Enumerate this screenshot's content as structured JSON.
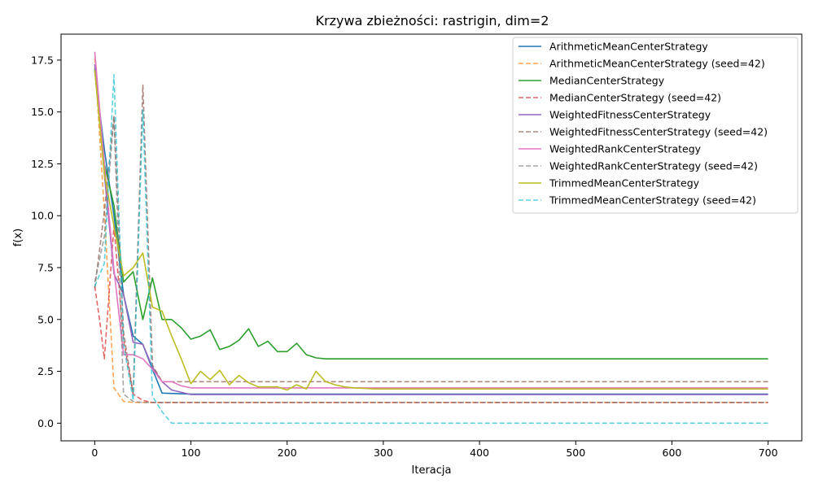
{
  "chart_data": {
    "type": "line",
    "title": "Krzywa zbieżności: rastrigin, dim=2",
    "xlabel": "Iteracja",
    "ylabel": "f(x)",
    "xlim": [
      -35,
      735
    ],
    "ylim": [
      -0.85,
      18.75
    ],
    "xticks": [
      0,
      100,
      200,
      300,
      400,
      500,
      600,
      700
    ],
    "yticks": [
      0.0,
      2.5,
      5.0,
      7.5,
      10.0,
      12.5,
      15.0,
      17.5
    ],
    "ytick_labels": [
      "0.0",
      "2.5",
      "5.0",
      "7.5",
      "10.0",
      "12.5",
      "15.0",
      "17.5"
    ],
    "grid": false,
    "legend_position": "top-right",
    "series": [
      {
        "name": "ArithmeticMeanCenterStrategy",
        "color": "#1f77b4",
        "dash": "solid",
        "x": [
          0,
          10,
          20,
          30,
          40,
          50,
          60,
          70,
          100,
          700
        ],
        "y": [
          17.0,
          13.2,
          10.0,
          6.2,
          4.2,
          3.8,
          2.6,
          1.45,
          1.4,
          1.4
        ]
      },
      {
        "name": "ArithmeticMeanCenterStrategy (seed=42)",
        "color": "#ff7f0e",
        "dash": "dashed",
        "x": [
          0,
          10,
          20,
          30,
          40,
          50,
          700
        ],
        "y": [
          17.6,
          10.2,
          1.7,
          1.05,
          1.0,
          1.0,
          1.0
        ]
      },
      {
        "name": "MedianCenterStrategy",
        "color": "#2ca02c",
        "dash": "solid",
        "x": [
          0,
          10,
          20,
          30,
          40,
          50,
          60,
          70,
          80,
          90,
          100,
          110,
          120,
          130,
          140,
          150,
          160,
          170,
          180,
          190,
          200,
          210,
          220,
          230,
          240,
          700
        ],
        "y": [
          17.1,
          12.5,
          10.5,
          6.8,
          7.3,
          5.0,
          7.0,
          5.0,
          5.0,
          4.6,
          4.05,
          4.2,
          4.5,
          3.55,
          3.7,
          4.0,
          4.55,
          3.7,
          3.95,
          3.45,
          3.45,
          3.85,
          3.3,
          3.15,
          3.1,
          3.1
        ]
      },
      {
        "name": "MedianCenterStrategy (seed=42)",
        "color": "#d62728",
        "dash": "dashed",
        "x": [
          0,
          5,
          10,
          20,
          30,
          40,
          50,
          60,
          700
        ],
        "y": [
          6.6,
          5.0,
          3.1,
          9.5,
          4.0,
          1.4,
          1.1,
          1.0,
          1.0
        ]
      },
      {
        "name": "WeightedFitnessCenterStrategy",
        "color": "#9467bd",
        "dash": "solid",
        "x": [
          0,
          10,
          20,
          30,
          40,
          50,
          60,
          70,
          80,
          100,
          700
        ],
        "y": [
          17.3,
          12.0,
          7.2,
          6.2,
          3.9,
          3.8,
          2.7,
          2.0,
          1.6,
          1.38,
          1.38
        ]
      },
      {
        "name": "WeightedFitnessCenterStrategy (seed=42)",
        "color": "#8c564b",
        "dash": "dashed",
        "x": [
          0,
          10,
          20,
          30,
          40,
          50,
          60,
          70,
          700
        ],
        "y": [
          6.5,
          10.2,
          14.8,
          4.4,
          1.4,
          16.3,
          2.8,
          2.0,
          2.0
        ]
      },
      {
        "name": "WeightedRankCenterStrategy",
        "color": "#e377c2",
        "dash": "solid",
        "x": [
          0,
          10,
          20,
          30,
          40,
          50,
          60,
          70,
          80,
          90,
          100,
          700
        ],
        "y": [
          17.9,
          12.5,
          7.4,
          3.3,
          3.3,
          3.1,
          2.6,
          2.0,
          2.0,
          1.8,
          1.7,
          1.7
        ]
      },
      {
        "name": "WeightedRankCenterStrategy (seed=42)",
        "color": "#7f7f7f",
        "dash": "dashed",
        "x": [
          0,
          10,
          20,
          30,
          40,
          50,
          700
        ],
        "y": [
          6.8,
          9.0,
          14.8,
          1.4,
          1.05,
          1.0,
          1.0
        ]
      },
      {
        "name": "TrimmedMeanCenterStrategy",
        "color": "#bcbd22",
        "dash": "solid",
        "x": [
          0,
          10,
          20,
          30,
          40,
          50,
          60,
          70,
          80,
          90,
          100,
          110,
          120,
          130,
          140,
          150,
          160,
          170,
          180,
          190,
          200,
          210,
          220,
          230,
          240,
          250,
          260,
          270,
          280,
          290,
          700
        ],
        "y": [
          17.0,
          12.0,
          9.5,
          7.1,
          7.5,
          8.2,
          5.6,
          5.4,
          4.2,
          3.1,
          1.9,
          2.5,
          2.1,
          2.55,
          1.85,
          2.3,
          1.95,
          1.75,
          1.75,
          1.75,
          1.6,
          1.85,
          1.65,
          2.5,
          2.0,
          1.85,
          1.75,
          1.7,
          1.68,
          1.65,
          1.65
        ]
      },
      {
        "name": "TrimmedMeanCenterStrategy (seed=42)",
        "color": "#17becf",
        "dash": "dashed",
        "x": [
          0,
          10,
          20,
          30,
          40,
          50,
          60,
          70,
          80,
          700
        ],
        "y": [
          6.6,
          7.7,
          16.8,
          3.8,
          1.1,
          15.1,
          1.3,
          0.55,
          0.0,
          0.0
        ]
      }
    ]
  }
}
